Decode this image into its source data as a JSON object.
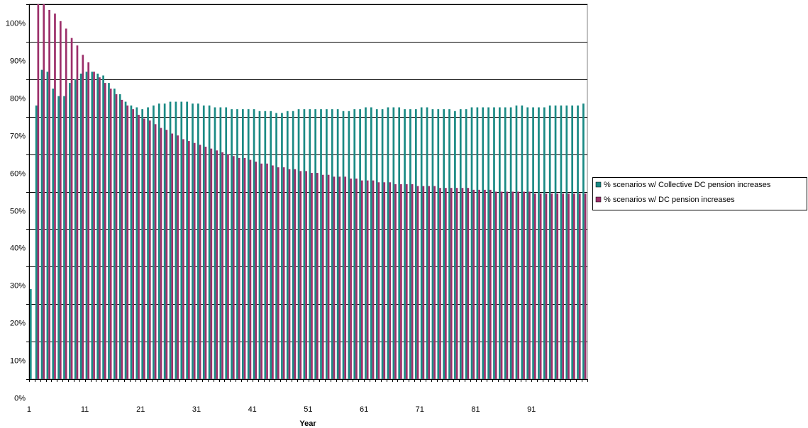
{
  "chart_data": {
    "type": "bar",
    "title": "",
    "xlabel": "Year",
    "ylabel": "",
    "ylim": [
      0,
      1.0
    ],
    "y_ticks": [
      "0%",
      "10%",
      "20%",
      "30%",
      "40%",
      "50%",
      "60%",
      "70%",
      "80%",
      "90%",
      "100%"
    ],
    "x_tick_labels": [
      "1",
      "11",
      "21",
      "31",
      "41",
      "51",
      "61",
      "71",
      "81",
      "91"
    ],
    "grid": true,
    "legend_position": "right",
    "x": [
      1,
      2,
      3,
      4,
      5,
      6,
      7,
      8,
      9,
      10,
      11,
      12,
      13,
      14,
      15,
      16,
      17,
      18,
      19,
      20,
      21,
      22,
      23,
      24,
      25,
      26,
      27,
      28,
      29,
      30,
      31,
      32,
      33,
      34,
      35,
      36,
      37,
      38,
      39,
      40,
      41,
      42,
      43,
      44,
      45,
      46,
      47,
      48,
      49,
      50,
      51,
      52,
      53,
      54,
      55,
      56,
      57,
      58,
      59,
      60,
      61,
      62,
      63,
      64,
      65,
      66,
      67,
      68,
      69,
      70,
      71,
      72,
      73,
      74,
      75,
      76,
      77,
      78,
      79,
      80,
      81,
      82,
      83,
      84,
      85,
      86,
      87,
      88,
      89,
      90,
      91,
      92,
      93,
      94,
      95,
      96,
      97,
      98,
      99,
      100
    ],
    "series": [
      {
        "name": "% scenarios w/ Collective DC pension increases",
        "color": "#1a8a84",
        "values": [
          0.24,
          0.73,
          0.825,
          0.82,
          0.775,
          0.755,
          0.755,
          0.79,
          0.8,
          0.815,
          0.82,
          0.82,
          0.815,
          0.81,
          0.79,
          0.775,
          0.76,
          0.74,
          0.73,
          0.725,
          0.72,
          0.725,
          0.73,
          0.735,
          0.735,
          0.74,
          0.74,
          0.74,
          0.74,
          0.735,
          0.735,
          0.73,
          0.73,
          0.725,
          0.725,
          0.725,
          0.72,
          0.72,
          0.72,
          0.72,
          0.72,
          0.715,
          0.715,
          0.715,
          0.71,
          0.71,
          0.715,
          0.715,
          0.72,
          0.72,
          0.72,
          0.72,
          0.72,
          0.72,
          0.72,
          0.72,
          0.715,
          0.715,
          0.72,
          0.72,
          0.725,
          0.725,
          0.72,
          0.72,
          0.725,
          0.725,
          0.725,
          0.72,
          0.72,
          0.72,
          0.725,
          0.725,
          0.72,
          0.72,
          0.72,
          0.72,
          0.715,
          0.72,
          0.72,
          0.725,
          0.725,
          0.725,
          0.725,
          0.725,
          0.725,
          0.725,
          0.725,
          0.73,
          0.73,
          0.725,
          0.725,
          0.725,
          0.725,
          0.73,
          0.73,
          0.73,
          0.73,
          0.73,
          0.73,
          0.735
        ]
      },
      {
        "name": "% scenarios w/ DC pension increases",
        "color": "#9c2f6a",
        "values": [
          0.0,
          1.0,
          1.0,
          0.985,
          0.975,
          0.955,
          0.935,
          0.91,
          0.89,
          0.865,
          0.845,
          0.82,
          0.805,
          0.79,
          0.775,
          0.76,
          0.745,
          0.73,
          0.72,
          0.705,
          0.695,
          0.69,
          0.68,
          0.67,
          0.665,
          0.655,
          0.65,
          0.64,
          0.635,
          0.63,
          0.625,
          0.62,
          0.615,
          0.61,
          0.605,
          0.6,
          0.595,
          0.59,
          0.59,
          0.585,
          0.58,
          0.575,
          0.575,
          0.57,
          0.565,
          0.565,
          0.56,
          0.56,
          0.555,
          0.555,
          0.55,
          0.55,
          0.545,
          0.545,
          0.54,
          0.54,
          0.54,
          0.535,
          0.535,
          0.53,
          0.53,
          0.53,
          0.525,
          0.525,
          0.525,
          0.52,
          0.52,
          0.52,
          0.52,
          0.515,
          0.515,
          0.515,
          0.515,
          0.51,
          0.51,
          0.51,
          0.51,
          0.51,
          0.51,
          0.505,
          0.505,
          0.505,
          0.505,
          0.5,
          0.5,
          0.5,
          0.5,
          0.5,
          0.5,
          0.5,
          0.495,
          0.495,
          0.495,
          0.495,
          0.495,
          0.495,
          0.495,
          0.495,
          0.495,
          0.495
        ]
      }
    ]
  }
}
